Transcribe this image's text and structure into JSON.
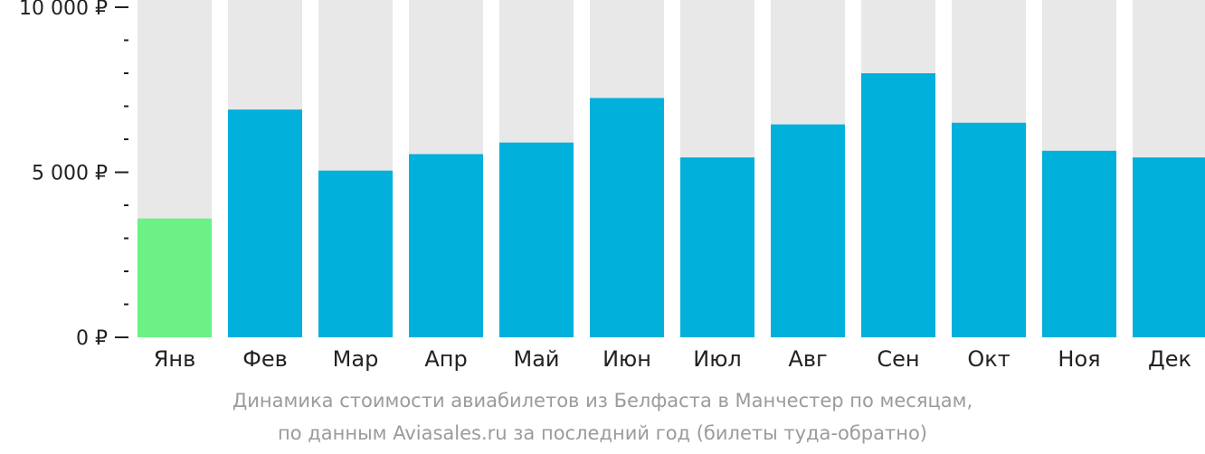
{
  "chart_data": {
    "type": "bar",
    "categories": [
      "Янв",
      "Фев",
      "Мар",
      "Апр",
      "Май",
      "Июн",
      "Июл",
      "Авг",
      "Сен",
      "Окт",
      "Ноя",
      "Дек"
    ],
    "values": [
      3600,
      6900,
      5050,
      5550,
      5900,
      7250,
      5450,
      6450,
      8000,
      6500,
      5650,
      5450
    ],
    "ylim": [
      0,
      10000
    ],
    "yticks": [
      {
        "value": 0,
        "label": "0 ₽"
      },
      {
        "value": 5000,
        "label": "5 000 ₽"
      },
      {
        "value": 10000,
        "label": "10 000 ₽"
      }
    ],
    "minor_tick_step": 1000,
    "highlight_index": 0,
    "colors": {
      "bar": "#02b0dc",
      "highlight": "#6bf185",
      "track": "#e8e8e8",
      "axis": "#222222"
    }
  },
  "caption": {
    "line1": "Динамика стоимости авиабилетов из Белфаста в Манчестер по месяцам,",
    "line2": "по данным Aviasales.ru за последний год (билеты туда-обратно)"
  }
}
